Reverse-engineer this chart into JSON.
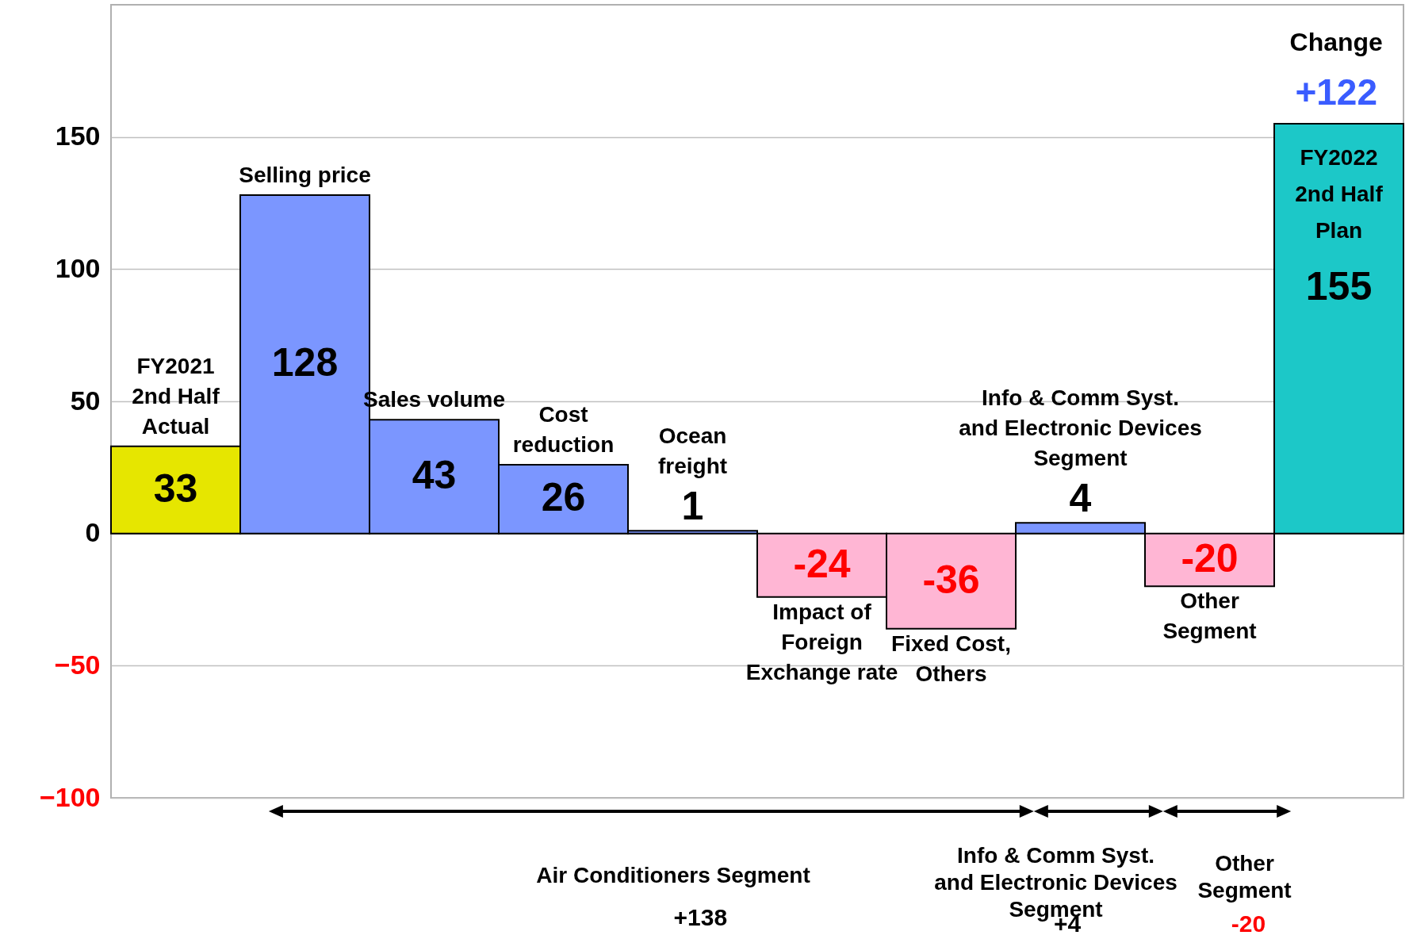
{
  "chart_data": {
    "type": "bar",
    "categories": [
      "FY2021\n2nd Half\nActual",
      "Selling price",
      "Sales volume",
      "Cost\nreduction",
      "Ocean\nfreight",
      "Impact of\nForeign\nExchange rate",
      "Fixed Cost,\nOthers",
      "Info & Comm Syst.\nand Electronic Devices\nSegment",
      "Other\nSegment",
      "FY2022\n2nd Half\nPlan"
    ],
    "values": [
      33,
      128,
      43,
      26,
      1,
      -24,
      -36,
      4,
      -20,
      155
    ],
    "colors": [
      "#e6e600",
      "#7b96ff",
      "#7b96ff",
      "#7b96ff",
      "#7b96ff",
      "#ffb6d4",
      "#ffb6d4",
      "#7b96ff",
      "#ffb6d4",
      "#1cc8c8"
    ],
    "ylim": [
      -100,
      200
    ],
    "yticks": [
      -100,
      -50,
      0,
      50,
      100,
      150
    ],
    "grid": "y",
    "data_labels": true,
    "annotations": [
      "Change",
      "+122",
      "Air Conditioners Segment",
      "+138",
      "Info & Comm Syst.\nand Electronic Devices\nSegment",
      "+4",
      "Other\nSegment",
      "-20"
    ]
  }
}
